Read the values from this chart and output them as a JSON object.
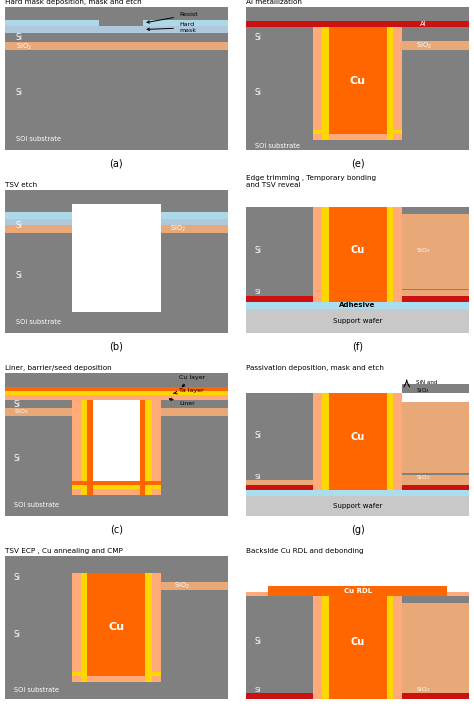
{
  "colors": {
    "si_gray": "#808080",
    "sio2_orange": "#E8A878",
    "resist_blue": "#ADD8E6",
    "hard_mask_blue": "#B0C8DC",
    "cu_orange": "#FF6600",
    "ta_yellow": "#FFD700",
    "liner_peach": "#FFAA78",
    "al_red": "#CC1111",
    "adhesive_blue": "#AADDEE",
    "support_gray": "#C8C8C8",
    "white": "#FFFFFF",
    "black": "#000000",
    "background": "#FFFFFF"
  },
  "panel_titles": {
    "a": "Hard mask deposition, mask and etch",
    "b": "TSV etch",
    "c": "Liner, barrier/seed deposition",
    "d": "TSV ECP , Cu annealing and CMP",
    "e": "Al metallization",
    "f": "Edge trimming , Temporary bonding\nand TSV reveal",
    "g": "Passivation deposition, mask and etch",
    "h": "Backside Cu RDL and debonding"
  }
}
